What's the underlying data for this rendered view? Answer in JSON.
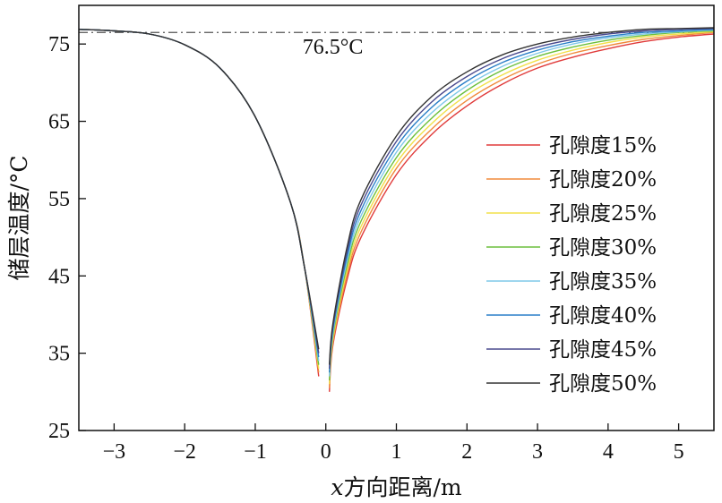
{
  "chart_data": {
    "type": "line",
    "xlabel_italic": "x",
    "xlabel_rest": "方向距离/m",
    "ylabel": "储层温度/°C",
    "xlim": [
      -3.5,
      5.5
    ],
    "ylim": [
      25,
      80
    ],
    "x_ticks": [
      -3,
      -2,
      -1,
      0,
      1,
      2,
      3,
      4,
      5
    ],
    "x_tick_labels": [
      "−3",
      "−2",
      "−1",
      "0",
      "1",
      "2",
      "3",
      "4",
      "5"
    ],
    "y_ticks": [
      25,
      35,
      45,
      55,
      65,
      75
    ],
    "y_tick_labels": [
      "25",
      "35",
      "45",
      "55",
      "65",
      "75"
    ],
    "grid": false,
    "legend_position": "center-right",
    "reference_line": {
      "y": 76.5,
      "label": "76.5°C",
      "style": "dash-dot"
    },
    "x": [
      -3.5,
      -3.0,
      -2.5,
      -2.0,
      -1.5,
      -1.0,
      -0.5,
      -0.3,
      -0.1,
      0.05,
      0.1,
      0.3,
      0.5,
      1.0,
      1.5,
      2.0,
      2.5,
      3.0,
      3.5,
      4.0,
      4.5,
      5.0,
      5.5
    ],
    "series": [
      {
        "name": "孔隙度15%",
        "color": "#e03a3a",
        "values": [
          76.9,
          76.7,
          76.3,
          74.9,
          71.9,
          65.6,
          54.5,
          46.0,
          32.0,
          30.0,
          36.0,
          44.5,
          50.0,
          58.1,
          63.3,
          67.0,
          69.8,
          71.9,
          73.3,
          74.4,
          75.3,
          75.9,
          76.3
        ]
      },
      {
        "name": "孔隙度20%",
        "color": "#f08a3c",
        "values": [
          76.9,
          76.7,
          76.3,
          74.9,
          71.9,
          65.6,
          54.5,
          46.0,
          32.5,
          30.5,
          36.4,
          45.1,
          50.7,
          58.9,
          64.0,
          67.7,
          70.4,
          72.4,
          73.8,
          74.8,
          75.6,
          76.1,
          76.5
        ]
      },
      {
        "name": "孔隙度25%",
        "color": "#f2e04a",
        "values": [
          76.9,
          76.7,
          76.3,
          74.9,
          71.9,
          65.6,
          54.5,
          46.0,
          33.0,
          31.0,
          36.8,
          45.7,
          51.4,
          59.6,
          64.7,
          68.4,
          71.0,
          72.9,
          74.2,
          75.2,
          75.9,
          76.3,
          76.6
        ]
      },
      {
        "name": "孔隙度30%",
        "color": "#6cbf3c",
        "values": [
          76.9,
          76.7,
          76.3,
          74.9,
          71.9,
          65.6,
          54.5,
          46.0,
          33.5,
          31.5,
          37.2,
          46.3,
          52.1,
          60.3,
          65.4,
          69.0,
          71.6,
          73.4,
          74.6,
          75.5,
          76.1,
          76.5,
          76.7
        ]
      },
      {
        "name": "孔隙度35%",
        "color": "#7fc8e8",
        "values": [
          76.9,
          76.7,
          76.3,
          74.9,
          71.9,
          65.6,
          54.5,
          46.0,
          34.0,
          32.0,
          37.6,
          46.9,
          52.8,
          61.0,
          66.1,
          69.6,
          72.1,
          73.8,
          75.0,
          75.8,
          76.3,
          76.6,
          76.8
        ]
      },
      {
        "name": "孔隙度40%",
        "color": "#2a7fc8",
        "values": [
          76.9,
          76.7,
          76.3,
          74.9,
          71.9,
          65.6,
          54.5,
          46.0,
          34.5,
          32.5,
          38.0,
          47.5,
          53.5,
          61.7,
          66.8,
          70.2,
          72.6,
          74.2,
          75.3,
          76.0,
          76.5,
          76.7,
          76.9
        ]
      },
      {
        "name": "孔隙度45%",
        "color": "#4a4a8e",
        "values": [
          76.9,
          76.7,
          76.3,
          74.9,
          71.9,
          65.6,
          54.5,
          46.0,
          35.0,
          33.0,
          38.4,
          48.1,
          54.2,
          62.4,
          67.5,
          70.8,
          73.1,
          74.6,
          75.6,
          76.3,
          76.7,
          76.9,
          77.0
        ]
      },
      {
        "name": "孔隙度50%",
        "color": "#333333",
        "values": [
          76.9,
          76.7,
          76.3,
          74.9,
          71.9,
          65.6,
          54.5,
          46.0,
          35.5,
          33.5,
          38.8,
          48.7,
          54.9,
          63.1,
          68.2,
          71.4,
          73.6,
          75.0,
          75.9,
          76.5,
          76.9,
          77.0,
          77.1
        ]
      }
    ]
  }
}
